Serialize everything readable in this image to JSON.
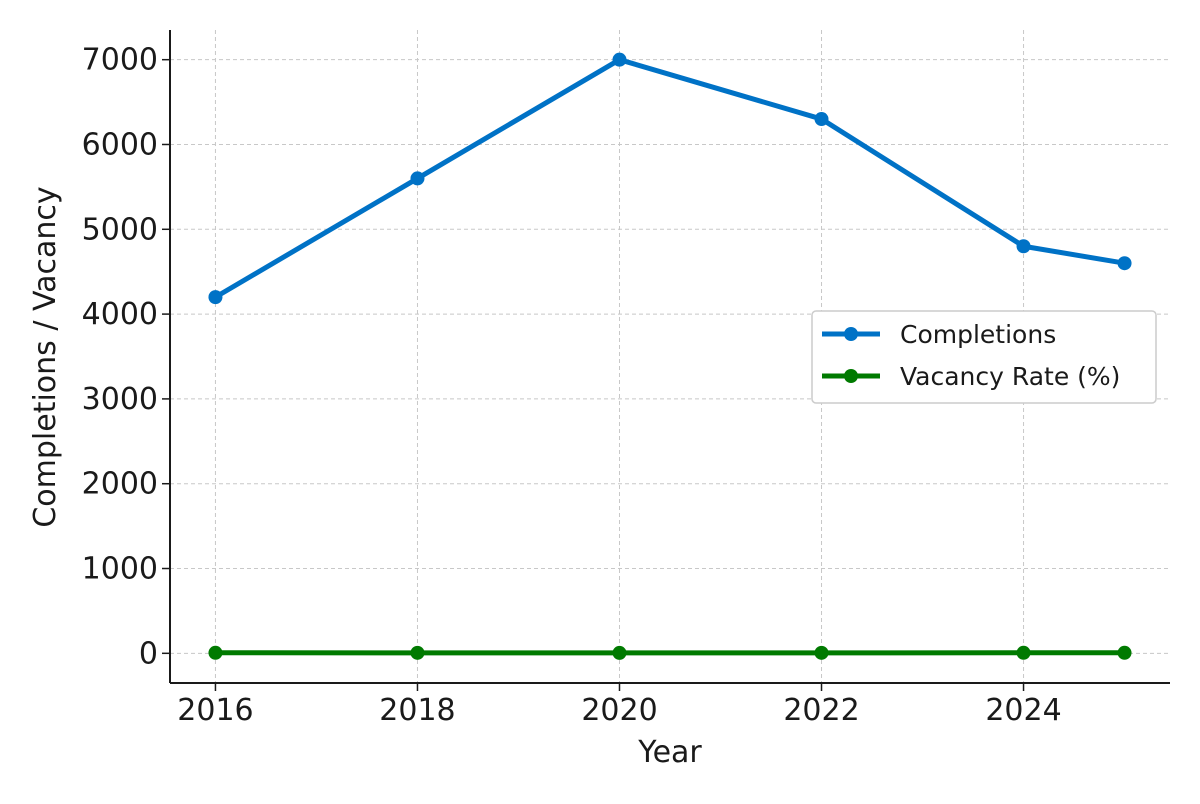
{
  "chart_data": {
    "type": "line",
    "title": "",
    "xlabel": "Year",
    "ylabel": "Completions / Vacancy",
    "x": [
      2016,
      2018,
      2020,
      2022,
      2024,
      2025
    ],
    "x_ticks": [
      2016,
      2018,
      2020,
      2022,
      2024
    ],
    "y_ticks": [
      0,
      1000,
      2000,
      3000,
      4000,
      5000,
      6000,
      7000
    ],
    "xlim": [
      2015.55,
      2025.45
    ],
    "ylim": [
      -350,
      7350
    ],
    "grid": true,
    "legend_position": "center-right",
    "series": [
      {
        "name": "Completions",
        "color": "#0072c6",
        "values": [
          4200,
          5600,
          7000,
          6300,
          4800,
          4600
        ]
      },
      {
        "name": "Vacancy Rate (%)",
        "color": "#007a00",
        "values": [
          6.2,
          5.8,
          5.0,
          5.4,
          6.0,
          6.1
        ]
      }
    ]
  }
}
